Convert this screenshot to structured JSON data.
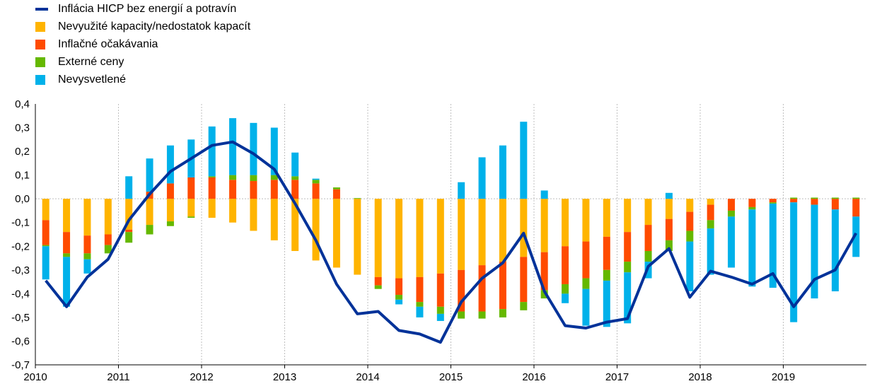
{
  "legend": [
    {
      "label": "Inflácia HICP bez energií a potravín",
      "color": "#003299",
      "kind": "line"
    },
    {
      "label": "Nevyužité kapacity/nedostatok kapacít",
      "color": "#FFB400",
      "kind": "bar"
    },
    {
      "label": "Inflačné očakávania",
      "color": "#FF4B00",
      "kind": "bar"
    },
    {
      "label": "Externé ceny",
      "color": "#65B800",
      "kind": "bar"
    },
    {
      "label": "Nevysvetlené",
      "color": "#00B1EA",
      "kind": "bar"
    }
  ],
  "chart_data": {
    "type": "bar",
    "stacked": true,
    "ylim": [
      -0.7,
      0.4
    ],
    "yticks": [
      "0,4",
      "0,3",
      "0,2",
      "0,1",
      "0,0",
      "-0,1",
      "-0,2",
      "-0,3",
      "-0,4",
      "-0,5",
      "-0,6",
      "-0,7"
    ],
    "ytick_values": [
      0.4,
      0.3,
      0.2,
      0.1,
      0.0,
      -0.1,
      -0.2,
      -0.3,
      -0.4,
      -0.5,
      -0.6,
      -0.7
    ],
    "year_labels": [
      "2010",
      "2011",
      "2012",
      "2013",
      "2014",
      "2015",
      "2016",
      "2017",
      "2018",
      "2019"
    ],
    "grid": "vertical-at-years",
    "categories": [
      "2010Q1",
      "2010Q2",
      "2010Q3",
      "2010Q4",
      "2011Q1",
      "2011Q2",
      "2011Q3",
      "2011Q4",
      "2012Q1",
      "2012Q2",
      "2012Q3",
      "2012Q4",
      "2013Q1",
      "2013Q2",
      "2013Q3",
      "2013Q4",
      "2014Q1",
      "2014Q2",
      "2014Q3",
      "2014Q4",
      "2015Q1",
      "2015Q2",
      "2015Q3",
      "2015Q4",
      "2016Q1",
      "2016Q2",
      "2016Q3",
      "2016Q4",
      "2017Q1",
      "2017Q2",
      "2017Q3",
      "2017Q4",
      "2018Q1",
      "2018Q2",
      "2018Q3",
      "2018Q4",
      "2019Q1",
      "2019Q2",
      "2019Q3",
      "2019Q4"
    ],
    "series": [
      {
        "name": "Nevyužité kapacity/nedostatok kapacít",
        "color": "#FFB400",
        "values": [
          -0.09,
          -0.14,
          -0.155,
          -0.15,
          -0.13,
          -0.11,
          -0.095,
          -0.075,
          -0.08,
          -0.1,
          -0.135,
          -0.175,
          -0.22,
          -0.26,
          -0.29,
          -0.32,
          -0.33,
          -0.335,
          -0.33,
          -0.315,
          -0.3,
          -0.28,
          -0.265,
          -0.245,
          -0.225,
          -0.2,
          -0.18,
          -0.16,
          -0.14,
          -0.11,
          -0.085,
          -0.055,
          -0.025,
          0.0,
          0.0,
          0.0,
          0.0,
          0.0,
          0.0,
          0.0
        ]
      },
      {
        "name": "Inflačné očakávania",
        "color": "#FF4B00",
        "values": [
          -0.105,
          -0.09,
          -0.075,
          -0.045,
          -0.01,
          0.03,
          0.065,
          0.09,
          0.09,
          0.08,
          0.075,
          0.08,
          0.08,
          0.065,
          0.04,
          0.0,
          -0.035,
          -0.07,
          -0.105,
          -0.14,
          -0.175,
          -0.195,
          -0.2,
          -0.19,
          -0.16,
          -0.16,
          -0.155,
          -0.14,
          -0.125,
          -0.11,
          -0.09,
          -0.08,
          -0.065,
          -0.05,
          -0.035,
          -0.015,
          -0.015,
          -0.025,
          -0.045,
          -0.075
        ]
      },
      {
        "name": "Externé ceny",
        "color": "#65B800",
        "values": [
          -0.005,
          -0.015,
          -0.025,
          -0.035,
          -0.045,
          -0.04,
          -0.02,
          -0.005,
          0.005,
          0.02,
          0.025,
          0.02,
          0.015,
          0.015,
          0.008,
          0.003,
          -0.015,
          -0.02,
          -0.02,
          -0.03,
          -0.03,
          -0.03,
          -0.035,
          -0.035,
          -0.035,
          -0.04,
          -0.045,
          -0.045,
          -0.045,
          -0.045,
          -0.045,
          -0.045,
          -0.035,
          -0.025,
          -0.01,
          -0.005,
          0.005,
          0.005,
          0.005,
          0.005
        ]
      },
      {
        "name": "Nevysvetlené",
        "color": "#00B1EA",
        "values": [
          -0.14,
          -0.21,
          -0.06,
          0.0,
          0.095,
          0.14,
          0.16,
          0.16,
          0.21,
          0.24,
          0.22,
          0.2,
          0.1,
          0.005,
          0.0,
          0.0,
          0.0,
          -0.02,
          -0.045,
          -0.03,
          0.07,
          0.175,
          0.225,
          0.325,
          0.035,
          -0.04,
          -0.155,
          -0.195,
          -0.215,
          -0.07,
          0.025,
          -0.21,
          -0.195,
          -0.215,
          -0.325,
          -0.355,
          -0.505,
          -0.395,
          -0.345,
          -0.17
        ]
      }
    ],
    "line": {
      "name": "Inflácia HICP bez energií a potravín",
      "color": "#003299",
      "values": [
        -0.345,
        -0.455,
        -0.33,
        -0.255,
        -0.09,
        0.02,
        0.115,
        0.17,
        0.225,
        0.24,
        0.19,
        0.125,
        -0.02,
        -0.175,
        -0.36,
        -0.485,
        -0.475,
        -0.555,
        -0.57,
        -0.605,
        -0.435,
        -0.335,
        -0.27,
        -0.145,
        -0.39,
        -0.535,
        -0.545,
        -0.52,
        -0.505,
        -0.285,
        -0.21,
        -0.415,
        -0.305,
        -0.33,
        -0.36,
        -0.315,
        -0.455,
        -0.34,
        -0.3,
        -0.145
      ]
    }
  }
}
